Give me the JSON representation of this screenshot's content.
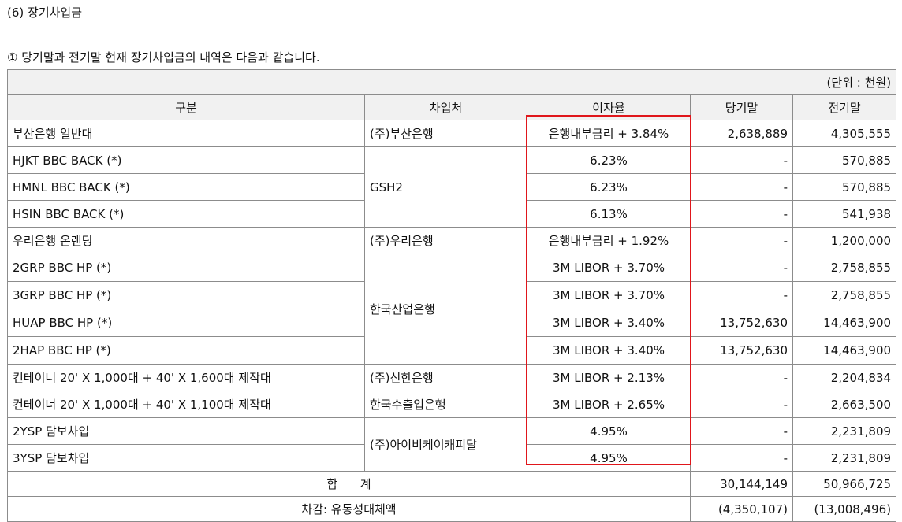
{
  "section_title": "(6) 장기차입금",
  "intro": "① 당기말과 전기말 현재 장기차입금의 내역은 다음과 같습니다.",
  "unit_note": "(단위 : 천원)",
  "headers": {
    "category": "구분",
    "lender": "차입처",
    "rate": "이자율",
    "current": "당기말",
    "prior": "전기말"
  },
  "rows": [
    {
      "category": "부산은행 일반대",
      "lender": "(주)부산은행",
      "rate": "은행내부금리 + 3.84%",
      "current": "2,638,889",
      "prior": "4,305,555"
    },
    {
      "category": "HJKT BBC BACK (*)",
      "lender": "GSH2",
      "rate": "6.23%",
      "current": "-",
      "prior": "570,885"
    },
    {
      "category": "HMNL BBC BACK (*)",
      "lender": "",
      "rate": "6.23%",
      "current": "-",
      "prior": "570,885"
    },
    {
      "category": "HSIN BBC BACK (*)",
      "lender": "",
      "rate": "6.13%",
      "current": "-",
      "prior": "541,938"
    },
    {
      "category": "우리은행 온랜딩",
      "lender": "(주)우리은행",
      "rate": "은행내부금리 + 1.92%",
      "current": "-",
      "prior": "1,200,000"
    },
    {
      "category": "2GRP BBC HP (*)",
      "lender": "한국산업은행",
      "rate": "3M LIBOR + 3.70%",
      "current": "-",
      "prior": "2,758,855"
    },
    {
      "category": "3GRP BBC HP (*)",
      "lender": "",
      "rate": "3M LIBOR + 3.70%",
      "current": "-",
      "prior": "2,758,855"
    },
    {
      "category": "HUAP BBC HP (*)",
      "lender": "",
      "rate": "3M LIBOR + 3.40%",
      "current": "13,752,630",
      "prior": "14,463,900"
    },
    {
      "category": "2HAP BBC HP (*)",
      "lender": "",
      "rate": "3M LIBOR + 3.40%",
      "current": "13,752,630",
      "prior": "14,463,900"
    },
    {
      "category": "컨테이너 20' X 1,000대 + 40' X 1,600대 제작대",
      "lender": "(주)신한은행",
      "rate": "3M LIBOR + 2.13%",
      "current": "-",
      "prior": "2,204,834"
    },
    {
      "category": "컨테이너 20' X 1,000대 + 40' X 1,100대 제작대",
      "lender": "한국수출입은행",
      "rate": "3M LIBOR + 2.65%",
      "current": "-",
      "prior": "2,663,500"
    },
    {
      "category": "2YSP 담보차입",
      "lender": "(주)아이비케이캐피탈",
      "rate": "4.95%",
      "current": "-",
      "prior": "2,231,809"
    },
    {
      "category": "3YSP 담보차입",
      "lender": "",
      "rate": "4.95%",
      "current": "-",
      "prior": "2,231,809"
    }
  ],
  "total": {
    "label": "합      계",
    "current": "30,144,149",
    "prior": "50,966,725"
  },
  "deduction": {
    "label": "차감: 유동성대체액",
    "current": "(4,350,107)",
    "prior": "(13,008,496)"
  },
  "highlight_color": "#e0161b"
}
